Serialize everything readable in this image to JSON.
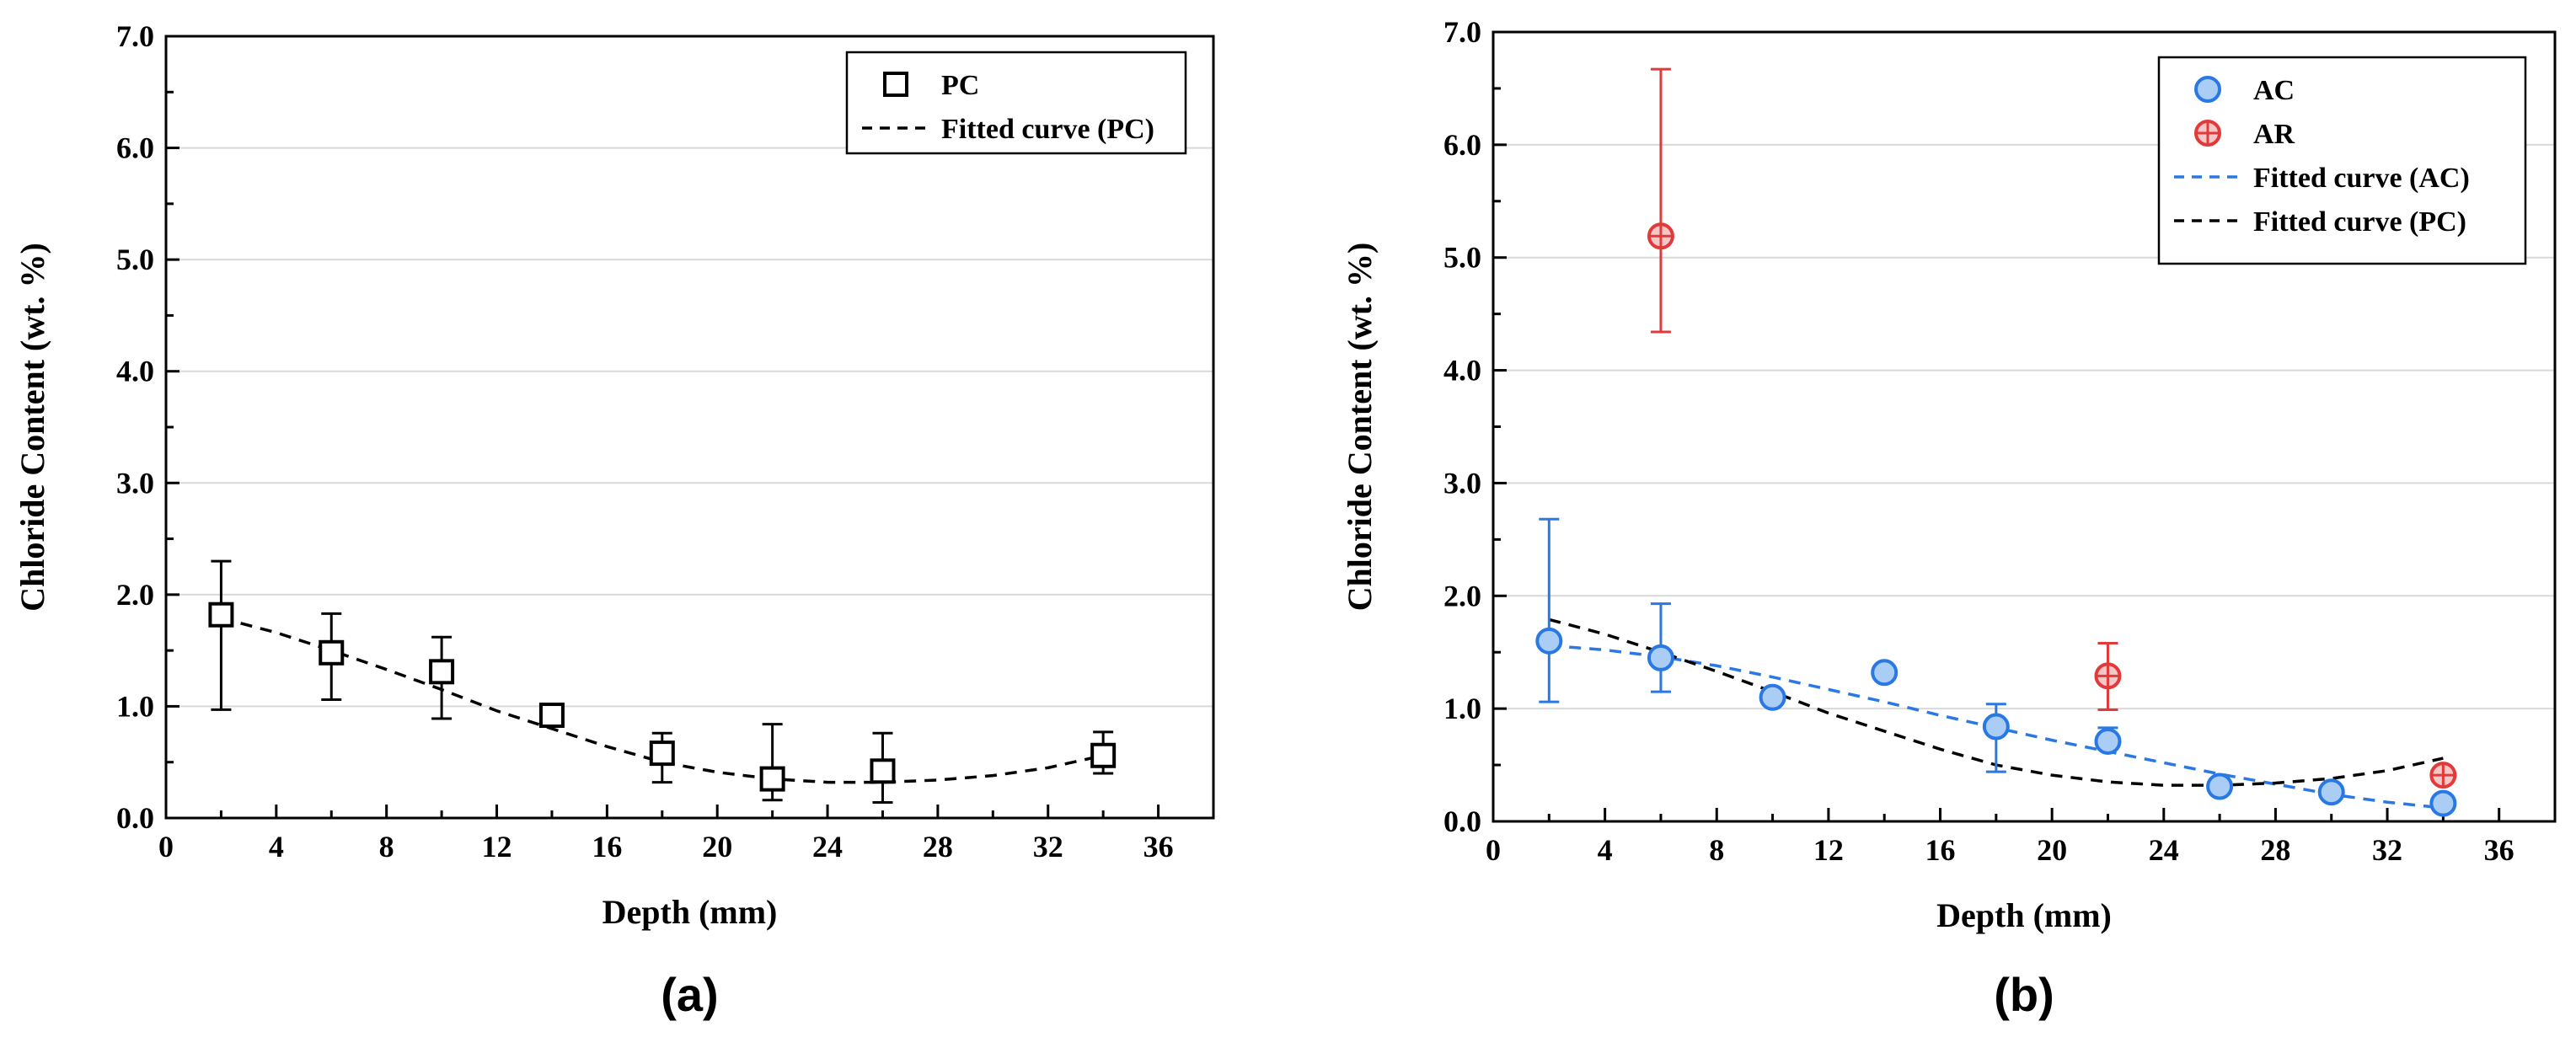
{
  "chart_data": [
    {
      "type": "scatter",
      "panel_label": "(a)",
      "xlabel": "Depth (mm)",
      "ylabel": "Chloride Content (wt. %)",
      "xlim": [
        0,
        38
      ],
      "ylim": [
        0,
        7
      ],
      "xticks": [
        0,
        4,
        8,
        12,
        16,
        20,
        24,
        28,
        32,
        36
      ],
      "xtick_labels": [
        "0",
        "4",
        "8",
        "12",
        "16",
        "20",
        "24",
        "28",
        "32",
        "36"
      ],
      "yticks": [
        0,
        1,
        2,
        3,
        4,
        5,
        6,
        7
      ],
      "ytick_labels": [
        "0.0",
        "1.0",
        "2.0",
        "3.0",
        "4.0",
        "5.0",
        "6.0",
        "7.0"
      ],
      "grid": true,
      "legend_position": "top-right",
      "series": [
        {
          "name": "PC",
          "kind": "points",
          "marker": "square",
          "color": "#000000",
          "x": [
            2,
            6,
            10,
            14,
            18,
            22,
            26,
            34
          ],
          "y": [
            1.82,
            1.48,
            1.31,
            0.92,
            0.58,
            0.35,
            0.42,
            0.56
          ],
          "err_low": [
            0.97,
            1.06,
            0.89,
            0.82,
            0.32,
            0.16,
            0.14,
            0.4
          ],
          "err_high": [
            2.3,
            1.83,
            1.62,
            0.98,
            0.76,
            0.84,
            0.76,
            0.77
          ]
        },
        {
          "name": "Fitted curve (PC)",
          "kind": "line",
          "dash": "dashed",
          "color": "#000000",
          "x": [
            2,
            4,
            6,
            8,
            10,
            12,
            14,
            16,
            18,
            20,
            22,
            24,
            26,
            28,
            30,
            32,
            34
          ],
          "y": [
            1.79,
            1.66,
            1.5,
            1.33,
            1.15,
            0.96,
            0.8,
            0.64,
            0.5,
            0.41,
            0.35,
            0.32,
            0.32,
            0.34,
            0.38,
            0.45,
            0.56
          ]
        }
      ]
    },
    {
      "type": "scatter",
      "panel_label": "(b)",
      "xlabel": "Depth (mm)",
      "ylabel": "Chloride Content (wt. %)",
      "xlim": [
        0,
        38
      ],
      "ylim": [
        0,
        7
      ],
      "xticks": [
        0,
        4,
        8,
        12,
        16,
        20,
        24,
        28,
        32,
        36
      ],
      "xtick_labels": [
        "0",
        "4",
        "8",
        "12",
        "16",
        "20",
        "24",
        "28",
        "32",
        "36"
      ],
      "yticks": [
        0,
        1,
        2,
        3,
        4,
        5,
        6,
        7
      ],
      "ytick_labels": [
        "0.0",
        "1.0",
        "2.0",
        "3.0",
        "4.0",
        "5.0",
        "6.0",
        "7.0"
      ],
      "grid": true,
      "legend_position": "top-right",
      "series": [
        {
          "name": "AC",
          "kind": "points",
          "marker": "circle",
          "color": "#2a78e4",
          "x": [
            2,
            6,
            10,
            14,
            18,
            22,
            26,
            30,
            34
          ],
          "y": [
            1.6,
            1.45,
            1.1,
            1.32,
            0.84,
            0.71,
            0.31,
            0.26,
            0.16
          ],
          "err_low": [
            1.06,
            1.15,
            1.06,
            1.29,
            0.44,
            0.64,
            0.29,
            0.24,
            0.14
          ],
          "err_high": [
            2.68,
            1.93,
            1.14,
            1.35,
            1.04,
            0.83,
            0.33,
            0.28,
            0.18
          ]
        },
        {
          "name": "AR",
          "kind": "points",
          "marker": "circle-plus",
          "color": "#e23a3a",
          "x": [
            6,
            22,
            34
          ],
          "y": [
            5.19,
            1.29,
            0.41
          ],
          "err_low": [
            4.34,
            0.99,
            0.37
          ],
          "err_high": [
            6.67,
            1.58,
            0.45
          ]
        },
        {
          "name": "Fitted curve (AC)",
          "kind": "line",
          "dash": "dashed",
          "color": "#2a78e4",
          "x": [
            2,
            4,
            6,
            8,
            10,
            12,
            14,
            16,
            18,
            20,
            22,
            24,
            26,
            28,
            30,
            32,
            34
          ],
          "y": [
            1.56,
            1.52,
            1.46,
            1.38,
            1.28,
            1.17,
            1.06,
            0.94,
            0.83,
            0.72,
            0.62,
            0.52,
            0.42,
            0.33,
            0.24,
            0.17,
            0.12
          ]
        },
        {
          "name": "Fitted curve (PC)",
          "kind": "line",
          "dash": "dashed",
          "color": "#000000",
          "x": [
            2,
            4,
            6,
            8,
            10,
            12,
            14,
            16,
            18,
            20,
            22,
            24,
            26,
            28,
            30,
            32,
            34
          ],
          "y": [
            1.79,
            1.66,
            1.5,
            1.33,
            1.15,
            0.96,
            0.8,
            0.64,
            0.5,
            0.41,
            0.35,
            0.32,
            0.32,
            0.34,
            0.38,
            0.45,
            0.56
          ]
        }
      ]
    }
  ]
}
